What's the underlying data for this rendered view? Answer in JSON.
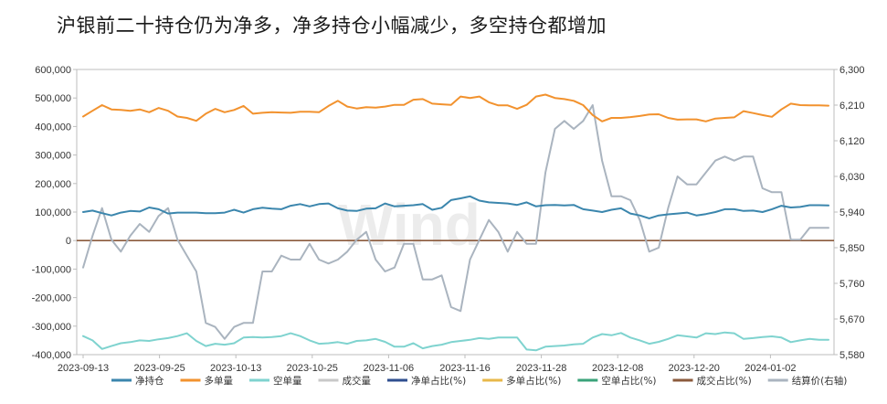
{
  "title": "沪银前二十持仓仍为净多，净多持仓小幅减少，多空持仓都增加",
  "watermark": "Wind",
  "chart_data": {
    "type": "line",
    "x_ticks": [
      "2023-09-13",
      "2023-09-25",
      "2023-10-13",
      "2023-10-25",
      "2023-11-06",
      "2023-11-16",
      "2023-11-28",
      "2023-12-08",
      "2023-12-20",
      "2024-01-02"
    ],
    "y_left": {
      "ylim": [
        -400000,
        600000
      ],
      "ticks": [
        "600,000",
        "500,000",
        "400,000",
        "300,000",
        "200,000",
        "100,000",
        "0",
        "-100,000",
        "-200,000",
        "-300,000",
        "-400,000"
      ]
    },
    "y_right": {
      "ylim": [
        5580,
        6300
      ],
      "ticks": [
        "6,300",
        "6,210",
        "6,120",
        "6,030",
        "5,940",
        "5,850",
        "5,760",
        "5,670",
        "5,580"
      ]
    },
    "legend": [
      {
        "name": "净持仓",
        "color": "#3b86ad"
      },
      {
        "name": "多单量",
        "color": "#f2922e"
      },
      {
        "name": "空单量",
        "color": "#7fd3cf"
      },
      {
        "name": "成交量",
        "color": "#c8c8c8"
      },
      {
        "name": "净单占比(%)",
        "color": "#2f4f8f"
      },
      {
        "name": "多单占比(%)",
        "color": "#e8b84a"
      },
      {
        "name": "空单占比(%)",
        "color": "#3aa37a"
      },
      {
        "name": "成交占比(%)",
        "color": "#8b5a3c"
      },
      {
        "name": "结算价(右轴)",
        "color": "#aab4bf"
      }
    ],
    "series": [
      {
        "name": "净持仓",
        "axis": "left",
        "color": "#3b86ad",
        "values": [
          100000,
          105000,
          96000,
          88000,
          98000,
          104000,
          102000,
          116000,
          110000,
          95000,
          98000,
          98000,
          98000,
          96000,
          96000,
          98000,
          108000,
          98000,
          110000,
          115000,
          112000,
          110000,
          122000,
          128000,
          120000,
          128000,
          130000,
          113000,
          105000,
          104000,
          112000,
          113000,
          130000,
          120000,
          122000,
          124000,
          128000,
          108000,
          115000,
          142000,
          148000,
          155000,
          140000,
          134000,
          132000,
          130000,
          125000,
          134000,
          120000,
          124000,
          125000,
          123000,
          125000,
          110000,
          105000,
          100000,
          108000,
          113000,
          95000,
          88000,
          78000,
          88000,
          92000,
          95000,
          98000,
          88000,
          93000,
          100000,
          110000,
          110000,
          104000,
          105000,
          100000,
          110000,
          122000,
          116000,
          118000,
          124000,
          124000,
          123000
        ]
      },
      {
        "name": "多单量",
        "axis": "left",
        "color": "#f2922e",
        "values": [
          435000,
          455000,
          475000,
          460000,
          458000,
          455000,
          460000,
          450000,
          465000,
          455000,
          435000,
          430000,
          420000,
          445000,
          462000,
          450000,
          458000,
          472000,
          445000,
          448000,
          450000,
          449000,
          448000,
          452000,
          452000,
          450000,
          472000,
          490000,
          470000,
          463000,
          468000,
          466000,
          470000,
          476000,
          476000,
          494000,
          496000,
          480000,
          478000,
          476000,
          505000,
          500000,
          505000,
          485000,
          474000,
          474000,
          462000,
          476000,
          505000,
          512000,
          500000,
          496000,
          490000,
          475000,
          440000,
          418000,
          430000,
          430000,
          433000,
          437000,
          442000,
          443000,
          430000,
          424000,
          425000,
          425000,
          418000,
          428000,
          430000,
          432000,
          454000,
          447000,
          440000,
          434000,
          460000,
          480000,
          475000,
          474000,
          474000,
          473000
        ]
      },
      {
        "name": "空单量",
        "axis": "left",
        "color": "#7fd3cf",
        "values": [
          -335000,
          -350000,
          -380000,
          -370000,
          -360000,
          -356000,
          -350000,
          -352000,
          -346000,
          -342000,
          -335000,
          -325000,
          -352000,
          -370000,
          -362000,
          -365000,
          -360000,
          -340000,
          -338000,
          -340000,
          -338000,
          -335000,
          -325000,
          -335000,
          -350000,
          -362000,
          -360000,
          -356000,
          -362000,
          -352000,
          -350000,
          -345000,
          -355000,
          -372000,
          -372000,
          -360000,
          -378000,
          -370000,
          -365000,
          -356000,
          -352000,
          -348000,
          -342000,
          -345000,
          -340000,
          -340000,
          -340000,
          -382000,
          -385000,
          -372000,
          -370000,
          -368000,
          -364000,
          -362000,
          -340000,
          -328000,
          -332000,
          -324000,
          -340000,
          -350000,
          -362000,
          -355000,
          -345000,
          -332000,
          -336000,
          -340000,
          -325000,
          -328000,
          -322000,
          -325000,
          -345000,
          -342000,
          -338000,
          -336000,
          -340000,
          -356000,
          -350000,
          -345000,
          -348000,
          -348000
        ]
      },
      {
        "name": "结算价(右轴)",
        "axis": "right",
        "color": "#aab4bf",
        "values": [
          5800,
          5880,
          5950,
          5870,
          5840,
          5880,
          5910,
          5890,
          5930,
          5950,
          5870,
          5830,
          5790,
          5660,
          5650,
          5620,
          5650,
          5660,
          5660,
          5790,
          5790,
          5830,
          5820,
          5820,
          5860,
          5820,
          5810,
          5820,
          5840,
          5870,
          5890,
          5820,
          5790,
          5800,
          5860,
          5860,
          5770,
          5770,
          5780,
          5700,
          5690,
          5820,
          5870,
          5920,
          5890,
          5840,
          5890,
          5860,
          5860,
          6040,
          6150,
          6170,
          6150,
          6170,
          6210,
          6070,
          5980,
          5980,
          5970,
          5920,
          5840,
          5850,
          5950,
          6030,
          6010,
          6010,
          6040,
          6070,
          6080,
          6070,
          6080,
          6080,
          6000,
          5990,
          5990,
          5870,
          5870,
          5900,
          5900,
          5900
        ]
      }
    ],
    "zero_line_color": "#8b5a3c",
    "grid": false
  }
}
